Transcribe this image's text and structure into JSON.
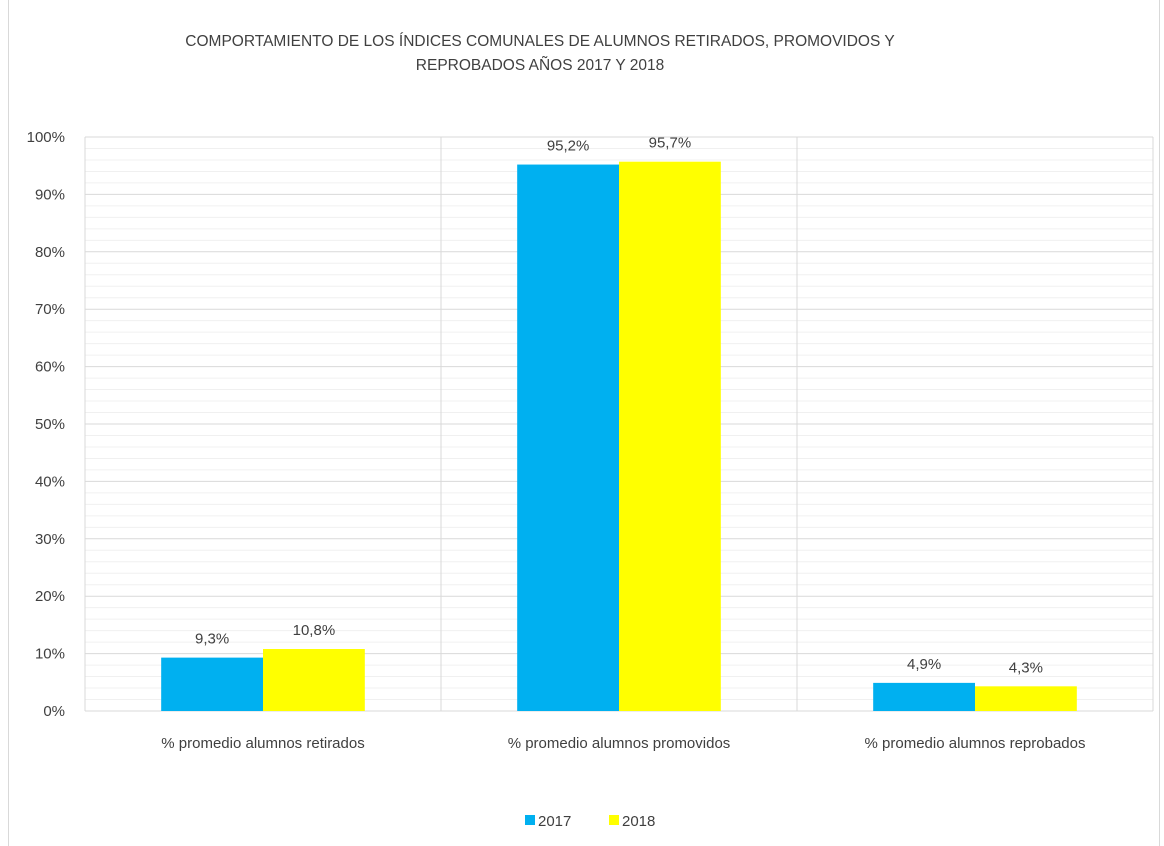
{
  "chart_data": {
    "type": "bar",
    "title_line1": "COMPORTAMIENTO DE LOS ÍNDICES COMUNALES DE ALUMNOS RETIRADOS, PROMOVIDOS Y",
    "title_line2": "REPROBADOS AÑOS 2017 Y 2018",
    "categories": [
      "% promedio alumnos retirados",
      "% promedio alumnos promovidos",
      "% promedio alumnos reprobados"
    ],
    "series": [
      {
        "name": "2017",
        "values": [
          9.3,
          95.2,
          4.9
        ],
        "labels": [
          "9,3%",
          "95,2%",
          "4,9%"
        ],
        "color": "#00b0f0"
      },
      {
        "name": "2018",
        "values": [
          10.8,
          95.7,
          4.3
        ],
        "labels": [
          "10,8%",
          "95,7%",
          "4,3%"
        ],
        "color": "#ffff00"
      }
    ],
    "y_ticks": [
      "0%",
      "10%",
      "20%",
      "30%",
      "40%",
      "50%",
      "60%",
      "70%",
      "80%",
      "90%",
      "100%"
    ],
    "ylim": [
      0,
      100
    ],
    "grid": true,
    "legend_position": "bottom"
  }
}
